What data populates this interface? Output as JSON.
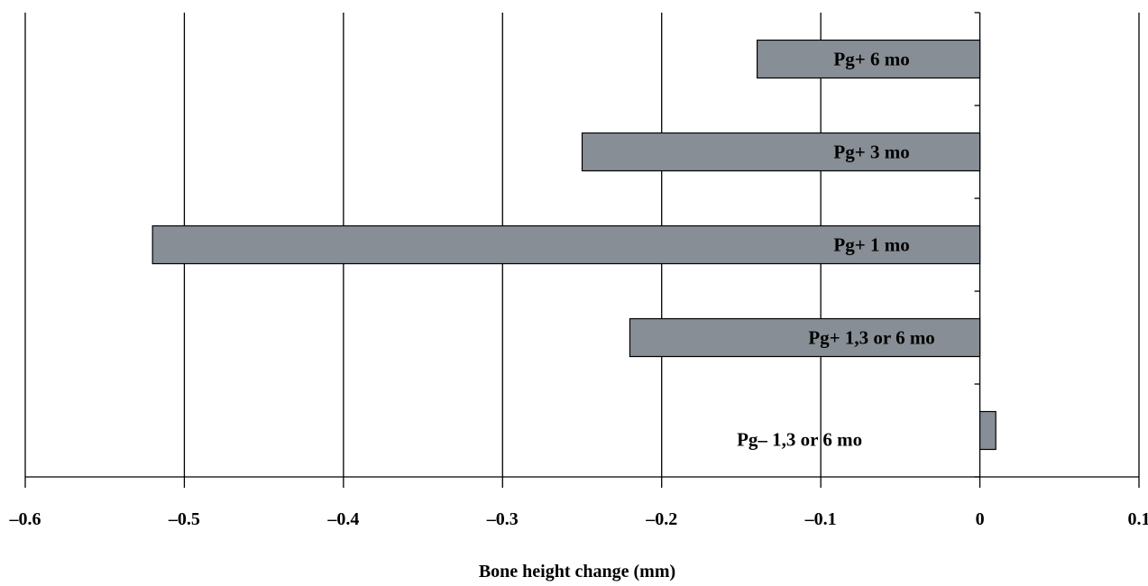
{
  "chart_data": {
    "type": "bar",
    "orientation": "horizontal",
    "title": "",
    "xlabel": "Bone height change (mm)",
    "ylabel": "",
    "xlim": [
      -0.6,
      0.1
    ],
    "xticks": [
      "–0.6",
      "–0.5",
      "–0.4",
      "–0.3",
      "–0.2",
      "–0.1",
      "0",
      "0.1"
    ],
    "xtick_values": [
      -0.6,
      -0.5,
      -0.4,
      -0.3,
      -0.2,
      -0.1,
      0,
      0.1
    ],
    "grid": "vertical",
    "bar_color": "#878e95",
    "categories": [
      "Pg+ 6 mo",
      "Pg+ 3 mo",
      "Pg+ 1 mo",
      "Pg+ 1,3 or 6 mo",
      "Pg– 1,3 or 6 mo"
    ],
    "values": [
      -0.14,
      -0.25,
      -0.52,
      -0.22,
      0.01
    ]
  }
}
